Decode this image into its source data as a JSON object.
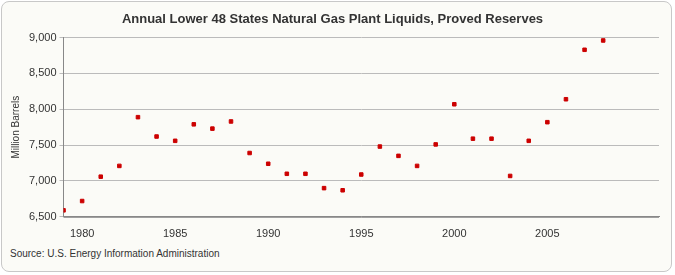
{
  "chart_data": {
    "type": "scatter",
    "title": "Annual Lower 48 States Natural Gas Plant Liquids, Proved Reserves",
    "y_label": "Million Barrels",
    "source": "Source: U.S. Energy Information Administration",
    "x": [
      1979,
      1980,
      1981,
      1982,
      1983,
      1984,
      1985,
      1986,
      1987,
      1988,
      1989,
      1990,
      1991,
      1992,
      1993,
      1994,
      1995,
      1996,
      1997,
      1998,
      1999,
      2000,
      2001,
      2002,
      2003,
      2004,
      2005,
      2006,
      2007,
      2008
    ],
    "values": [
      6590,
      6720,
      7060,
      7210,
      7890,
      7620,
      7560,
      7790,
      7730,
      7830,
      7390,
      7240,
      7100,
      7100,
      6900,
      6870,
      7090,
      7480,
      7350,
      7210,
      7510,
      8070,
      7590,
      7590,
      7070,
      7560,
      7820,
      8140,
      8830,
      8960
    ],
    "color": "#cc0000",
    "marker": "square",
    "xlim": [
      1979,
      2011
    ],
    "xticks": [
      1980,
      1985,
      1990,
      1995,
      2000,
      2005
    ],
    "ylim": [
      6500,
      9000
    ],
    "yticks": [
      {
        "value": 6500,
        "label": "6,500"
      },
      {
        "value": 7000,
        "label": "7,000"
      },
      {
        "value": 7500,
        "label": "7,500"
      },
      {
        "value": 8000,
        "label": "8,000"
      },
      {
        "value": 8500,
        "label": "8,500"
      },
      {
        "value": 9000,
        "label": "9,000"
      }
    ],
    "grid": true
  }
}
